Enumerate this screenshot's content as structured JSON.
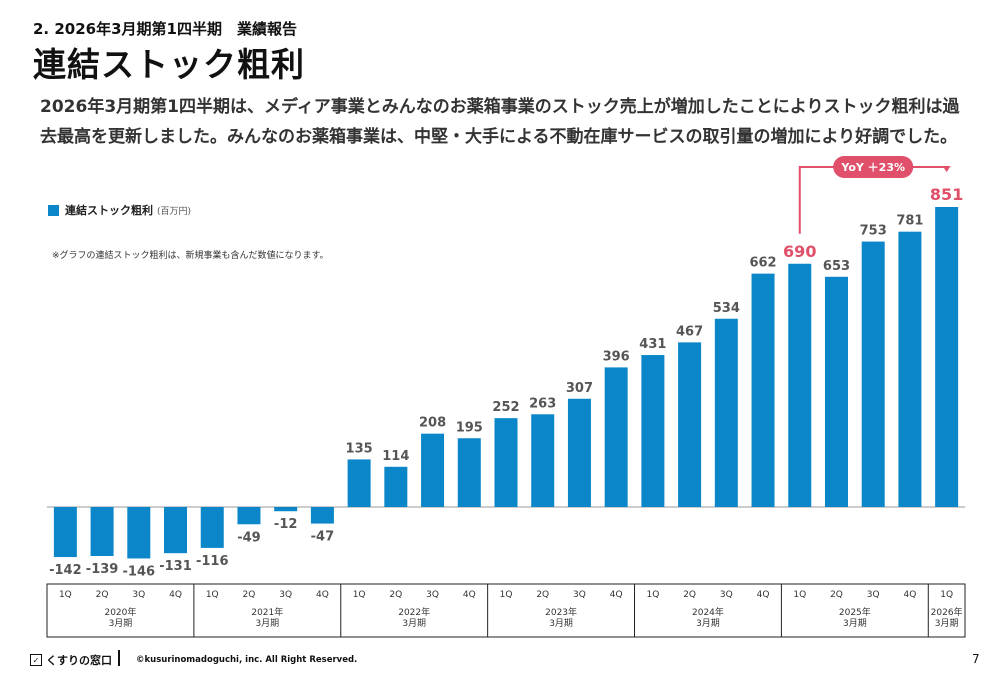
{
  "header": {
    "section": "2. 2026年3月期第1四半期　業績報告",
    "title": "連結ストック粗利",
    "description": "2026年3月期第1四半期は、メディア事業とみんなのお薬箱事業のストック売上が増加したことによりストック粗利は過去最高を更新しました。みんなのお薬箱事業は、中堅・大手による不動在庫サービスの取引量の増加により好調でした。"
  },
  "legend": {
    "label": "連結ストック粗利",
    "unit": "(百万円)"
  },
  "note": "※グラフの連結ストック粗利は、新規事業も含んだ数値になります。",
  "callout": {
    "text": "YoY ＋23%"
  },
  "footer": {
    "logo": "くすりの窓口",
    "copyright": "©kusurinomadoguchi, inc. All Right Reserved.",
    "page": "7"
  },
  "colors": {
    "bar": "#0a86c9",
    "highlight": "#e0506a",
    "label": "#555555"
  },
  "chart_data": {
    "type": "bar",
    "series": [
      {
        "name": "連結ストック粗利",
        "unit": "百万円"
      }
    ],
    "quarters": [
      "1Q",
      "2Q",
      "3Q",
      "4Q",
      "1Q",
      "2Q",
      "3Q",
      "4Q",
      "1Q",
      "2Q",
      "3Q",
      "4Q",
      "1Q",
      "2Q",
      "3Q",
      "4Q",
      "1Q",
      "2Q",
      "3Q",
      "4Q",
      "1Q",
      "2Q",
      "3Q",
      "4Q",
      "1Q"
    ],
    "values": [
      -142,
      -139,
      -146,
      -131,
      -116,
      -49,
      -12,
      -47,
      135,
      114,
      208,
      195,
      252,
      263,
      307,
      396,
      431,
      467,
      534,
      662,
      690,
      653,
      753,
      781,
      851
    ],
    "years": [
      {
        "label": "2020年\n3月期",
        "count": 4
      },
      {
        "label": "2021年\n3月期",
        "count": 4
      },
      {
        "label": "2022年\n3月期",
        "count": 4
      },
      {
        "label": "2023年\n3月期",
        "count": 4
      },
      {
        "label": "2024年\n3月期",
        "count": 4
      },
      {
        "label": "2025年\n3月期",
        "count": 4
      },
      {
        "label": "2026年\n3月期",
        "count": 1
      }
    ],
    "highlight_indices": [
      20,
      24
    ]
  }
}
